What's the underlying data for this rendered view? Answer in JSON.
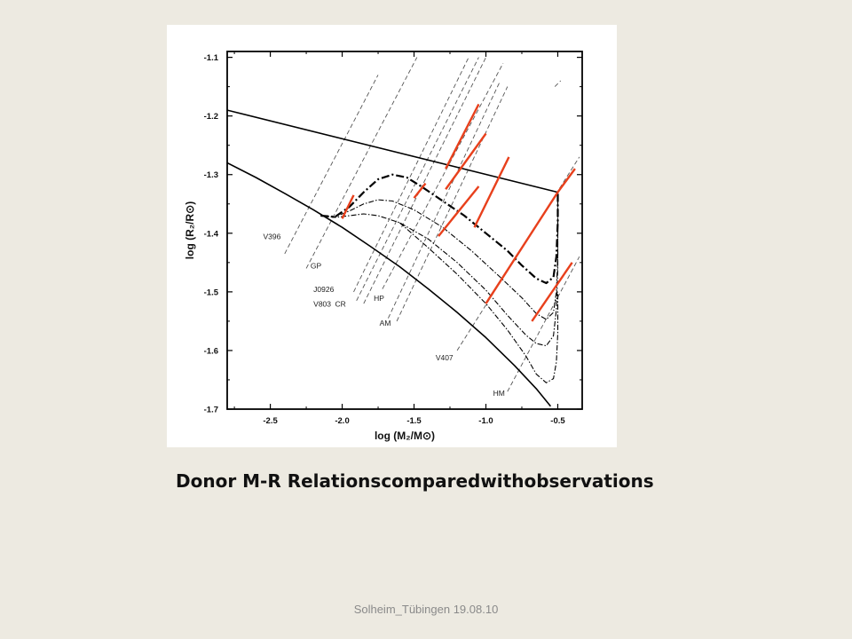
{
  "slide": {
    "caption": "Donor M-R Relationscomparedwithobservations",
    "footer": "Solheim_Tübingen 19.08.10"
  },
  "chart_data": {
    "type": "line",
    "xlabel": "log (M₂/M⊙)",
    "ylabel": "log (R₂/R⊙)",
    "xlim": [
      -2.8,
      -0.33
    ],
    "ylim": [
      -1.7,
      -1.09
    ],
    "xticks": [
      -2.5,
      -2.0,
      -1.5,
      -1.0,
      -0.5
    ],
    "xtick_labels": [
      "-2.5",
      "-2.0",
      "-1.5",
      "-1.0",
      "-0.5"
    ],
    "yticks": [
      -1.7,
      -1.6,
      -1.5,
      -1.4,
      -1.3,
      -1.2,
      -1.1
    ],
    "ytick_labels": [
      "-1.7",
      "-1.6",
      "-1.5",
      "-1.4",
      "-1.3",
      "-1.2",
      "-1.1"
    ],
    "colors": {
      "observation": "#e8401c",
      "model": "#000000",
      "constraint": "#555555"
    },
    "series": [
      {
        "style": "solid",
        "width": 1.6,
        "points": [
          [
            -2.8,
            -1.19
          ],
          [
            -0.5,
            -1.33
          ]
        ]
      },
      {
        "style": "solid",
        "width": 1.6,
        "points": [
          [
            -2.8,
            -1.28
          ],
          [
            -2.6,
            -1.305
          ],
          [
            -2.4,
            -1.332
          ],
          [
            -2.2,
            -1.36
          ],
          [
            -2.0,
            -1.39
          ],
          [
            -1.8,
            -1.423
          ],
          [
            -1.6,
            -1.457
          ],
          [
            -1.4,
            -1.495
          ],
          [
            -1.2,
            -1.535
          ],
          [
            -1.0,
            -1.578
          ],
          [
            -0.8,
            -1.626
          ],
          [
            -0.65,
            -1.665
          ],
          [
            -0.55,
            -1.695
          ]
        ]
      },
      {
        "style": "dash-dot-thick",
        "width": 2.2,
        "points": [
          [
            -2.15,
            -1.37
          ],
          [
            -2.05,
            -1.372
          ],
          [
            -1.95,
            -1.355
          ],
          [
            -1.85,
            -1.33
          ],
          [
            -1.75,
            -1.308
          ],
          [
            -1.65,
            -1.3
          ],
          [
            -1.55,
            -1.305
          ],
          [
            -1.45,
            -1.32
          ],
          [
            -1.3,
            -1.345
          ],
          [
            -1.15,
            -1.37
          ],
          [
            -1.0,
            -1.4
          ],
          [
            -0.85,
            -1.43
          ],
          [
            -0.75,
            -1.455
          ],
          [
            -0.65,
            -1.477
          ],
          [
            -0.58,
            -1.485
          ],
          [
            -0.53,
            -1.475
          ],
          [
            -0.51,
            -1.44
          ],
          [
            -0.5,
            -1.38
          ],
          [
            -0.5,
            -1.33
          ]
        ]
      },
      {
        "style": "dash-dot",
        "width": 1.1,
        "points": [
          [
            -2.15,
            -1.37
          ],
          [
            -2.05,
            -1.372
          ],
          [
            -1.95,
            -1.362
          ],
          [
            -1.85,
            -1.35
          ],
          [
            -1.75,
            -1.343
          ],
          [
            -1.65,
            -1.345
          ],
          [
            -1.5,
            -1.36
          ],
          [
            -1.3,
            -1.39
          ],
          [
            -1.1,
            -1.43
          ],
          [
            -0.9,
            -1.475
          ],
          [
            -0.75,
            -1.51
          ],
          [
            -0.65,
            -1.537
          ],
          [
            -0.58,
            -1.547
          ],
          [
            -0.53,
            -1.535
          ],
          [
            -0.51,
            -1.5
          ],
          [
            -0.5,
            -1.44
          ],
          [
            -0.5,
            -1.33
          ]
        ]
      },
      {
        "style": "dash-dot",
        "width": 1.1,
        "points": [
          [
            -2.15,
            -1.37
          ],
          [
            -2.05,
            -1.373
          ],
          [
            -1.95,
            -1.37
          ],
          [
            -1.85,
            -1.367
          ],
          [
            -1.75,
            -1.37
          ],
          [
            -1.6,
            -1.382
          ],
          [
            -1.4,
            -1.41
          ],
          [
            -1.2,
            -1.45
          ],
          [
            -1.0,
            -1.497
          ],
          [
            -0.85,
            -1.54
          ],
          [
            -0.72,
            -1.574
          ],
          [
            -0.65,
            -1.588
          ],
          [
            -0.58,
            -1.592
          ],
          [
            -0.53,
            -1.575
          ],
          [
            -0.51,
            -1.53
          ],
          [
            -0.5,
            -1.46
          ],
          [
            -0.5,
            -1.33
          ]
        ]
      },
      {
        "style": "dash-dot",
        "width": 1.1,
        "points": [
          [
            -1.6,
            -1.382
          ],
          [
            -1.4,
            -1.425
          ],
          [
            -1.2,
            -1.47
          ],
          [
            -1.0,
            -1.52
          ],
          [
            -0.85,
            -1.565
          ],
          [
            -0.72,
            -1.61
          ],
          [
            -0.65,
            -1.64
          ],
          [
            -0.58,
            -1.655
          ],
          [
            -0.53,
            -1.648
          ],
          [
            -0.51,
            -1.62
          ],
          [
            -0.5,
            -1.57
          ],
          [
            -0.5,
            -1.5
          ]
        ]
      }
    ],
    "constraint_lines": [
      {
        "label": "V396",
        "points": [
          [
            -2.4,
            -1.435
          ],
          [
            -1.75,
            -1.13
          ]
        ]
      },
      {
        "label": "GP",
        "points": [
          [
            -2.25,
            -1.46
          ],
          [
            -1.48,
            -1.1
          ]
        ]
      },
      {
        "label": "J0926",
        "points": [
          [
            -1.92,
            -1.5
          ],
          [
            -1.12,
            -1.1
          ]
        ]
      },
      {
        "label": "V803",
        "points": [
          [
            -1.9,
            -1.515
          ],
          [
            -1.05,
            -1.1
          ]
        ]
      },
      {
        "label": "CR",
        "points": [
          [
            -1.85,
            -1.52
          ],
          [
            -1.0,
            -1.1
          ]
        ]
      },
      {
        "label": "HP",
        "points": [
          [
            -1.72,
            -1.495
          ],
          [
            -0.88,
            -1.11
          ]
        ]
      },
      {
        "label": "AM",
        "points": [
          [
            -1.68,
            -1.545
          ],
          [
            -0.9,
            -1.14
          ]
        ]
      },
      {
        "label": "",
        "points": [
          [
            -1.62,
            -1.55
          ],
          [
            -0.85,
            -1.15
          ]
        ]
      },
      {
        "label": "V407",
        "points": [
          [
            -1.2,
            -1.6
          ],
          [
            -0.35,
            -1.27
          ]
        ]
      },
      {
        "label": "HM",
        "points": [
          [
            -0.85,
            -1.67
          ],
          [
            -0.35,
            -1.44
          ]
        ]
      },
      {
        "label": "",
        "points": [
          [
            -0.52,
            -1.15
          ],
          [
            -0.48,
            -1.14
          ]
        ]
      }
    ],
    "object_labels": [
      {
        "text": "V396",
        "x": -2.55,
        "y": -1.41
      },
      {
        "text": "GP",
        "x": -2.22,
        "y": -1.46
      },
      {
        "text": "J0926",
        "x": -2.2,
        "y": -1.5
      },
      {
        "text": "V803",
        "x": -2.2,
        "y": -1.525
      },
      {
        "text": "CR",
        "x": -2.05,
        "y": -1.525
      },
      {
        "text": "HP",
        "x": -1.78,
        "y": -1.515
      },
      {
        "text": "AM",
        "x": -1.74,
        "y": -1.558
      },
      {
        "text": "V407",
        "x": -1.35,
        "y": -1.617
      },
      {
        "text": "HM",
        "x": -0.95,
        "y": -1.677
      }
    ],
    "observations": [
      [
        [
          -2.0,
          -1.375
        ],
        [
          -1.92,
          -1.335
        ]
      ],
      [
        [
          -1.5,
          -1.34
        ],
        [
          -1.42,
          -1.315
        ]
      ],
      [
        [
          -1.28,
          -1.29
        ],
        [
          -1.05,
          -1.18
        ]
      ],
      [
        [
          -1.28,
          -1.325
        ],
        [
          -1.0,
          -1.23
        ]
      ],
      [
        [
          -1.33,
          -1.405
        ],
        [
          -1.05,
          -1.32
        ]
      ],
      [
        [
          -1.08,
          -1.39
        ],
        [
          -0.84,
          -1.27
        ]
      ],
      [
        [
          -1.0,
          -1.52
        ],
        [
          -0.5,
          -1.33
        ]
      ],
      [
        [
          -0.5,
          -1.33
        ],
        [
          -0.38,
          -1.29
        ]
      ],
      [
        [
          -0.68,
          -1.55
        ],
        [
          -0.4,
          -1.45
        ]
      ]
    ]
  }
}
